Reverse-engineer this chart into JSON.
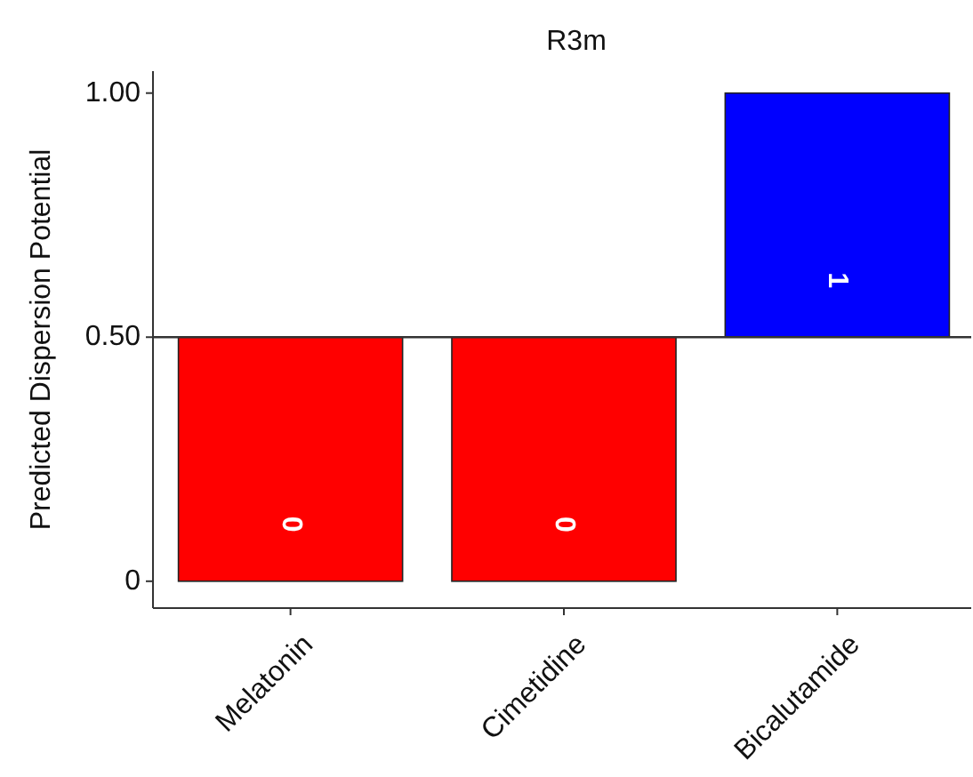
{
  "chart_data": {
    "type": "bar",
    "title": "R3m",
    "ylabel": "Predicted Dispersion Potential",
    "categories": [
      "Melatonin",
      "Cimetidine",
      "Bicalutamide"
    ],
    "base": [
      0.5,
      0.5,
      0.5
    ],
    "values": [
      -0.5,
      -0.5,
      0.5
    ],
    "colors": [
      "#ff0000",
      "#ff0000",
      "#0000ff"
    ],
    "value_labels": [
      "0",
      "0",
      "1"
    ],
    "ylim": [
      -0.055,
      1.045
    ],
    "yticks": [
      {
        "value": 0,
        "label": "0"
      },
      {
        "value": 0.5,
        "label": "0.50"
      },
      {
        "value": 1,
        "label": "1.00"
      }
    ],
    "ref_lines": [
      {
        "axis": "y",
        "value": 0.5,
        "color": "#333333"
      }
    ],
    "grid": false
  }
}
